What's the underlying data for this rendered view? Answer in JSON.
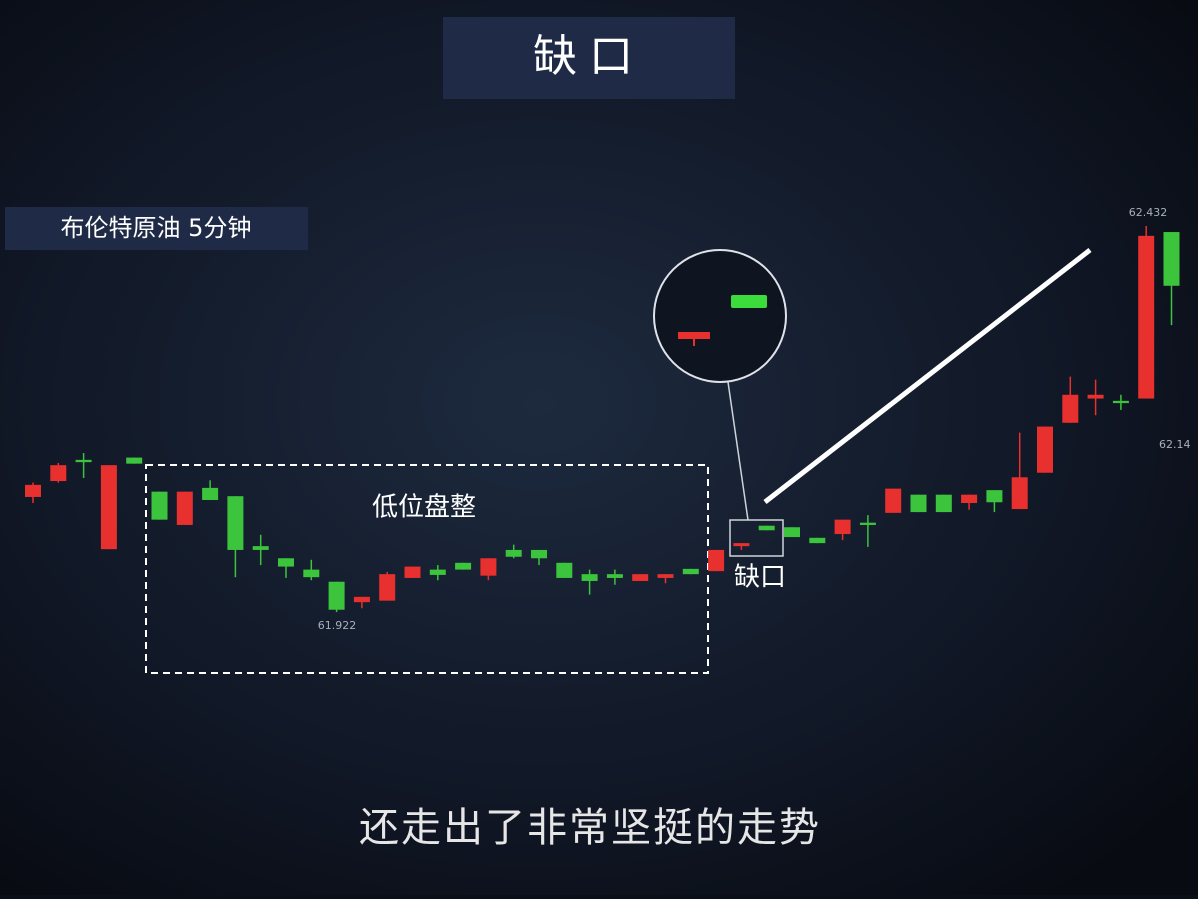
{
  "chart_data": {
    "type": "candlestick",
    "title": "缺口",
    "subtitle": "布伦特原油 5分钟",
    "caption": "还走出了非常坚挺的走势",
    "annotations": {
      "range": "低位盘整",
      "gap": "缺口",
      "high": "62.432",
      "low": "61.922",
      "edge": "62.14"
    },
    "up_color": "#e8302f",
    "down_color": "#3cc43c",
    "open": [
      62.074,
      62.095,
      62.123,
      62.005,
      62.126,
      62.081,
      62.037,
      62.086,
      62.075,
      62.009,
      61.993,
      61.978,
      61.962,
      61.935,
      61.937,
      61.967,
      61.978,
      61.987,
      61.97,
      62.004,
      62.004,
      61.987,
      61.972,
      61.972,
      61.963,
      61.967,
      61.979,
      61.976,
      62.009,
      62.036,
      62.034,
      62.02,
      62.025,
      62.04,
      62.053,
      62.077,
      62.077,
      62.066,
      62.083,
      62.058,
      62.106,
      62.172,
      62.204,
      62.201,
      62.204,
      62.424
    ],
    "high": [
      62.093,
      62.119,
      62.132,
      62.116,
      62.126,
      62.081,
      62.081,
      62.096,
      62.075,
      62.024,
      61.993,
      61.991,
      61.962,
      61.942,
      61.975,
      61.982,
      61.984,
      61.987,
      61.993,
      62.011,
      62.004,
      61.987,
      61.978,
      61.978,
      61.972,
      61.972,
      61.979,
      62.004,
      62.013,
      62.036,
      62.034,
      62.02,
      62.044,
      62.05,
      62.085,
      62.077,
      62.077,
      62.077,
      62.083,
      62.159,
      62.167,
      62.233,
      62.229,
      62.209,
      62.432,
      62.424
    ],
    "low": [
      62.066,
      62.093,
      62.099,
      62.005,
      62.118,
      62.044,
      62.037,
      62.07,
      61.968,
      61.984,
      61.967,
      61.964,
      61.922,
      61.927,
      61.937,
      61.967,
      61.964,
      61.978,
      61.964,
      61.993,
      61.984,
      61.967,
      61.945,
      61.958,
      61.963,
      61.96,
      61.972,
      61.976,
      62.004,
      62.03,
      62.021,
      62.013,
      62.017,
      62.008,
      62.053,
      62.054,
      62.054,
      62.057,
      62.054,
      62.058,
      62.106,
      62.172,
      62.182,
      62.189,
      62.204,
      62.301
    ],
    "close": [
      62.09,
      62.116,
      62.12,
      62.116,
      62.118,
      62.044,
      62.081,
      62.07,
      62.004,
      62.004,
      61.982,
      61.968,
      61.925,
      61.942,
      61.972,
      61.982,
      61.971,
      61.978,
      61.993,
      61.995,
      61.993,
      61.967,
      61.963,
      61.967,
      61.972,
      61.972,
      61.972,
      62.004,
      62.013,
      62.03,
      62.021,
      62.013,
      62.044,
      62.037,
      62.085,
      62.054,
      62.054,
      62.077,
      62.067,
      62.1,
      62.167,
      62.209,
      62.209,
      62.198,
      62.419,
      62.353
    ]
  }
}
